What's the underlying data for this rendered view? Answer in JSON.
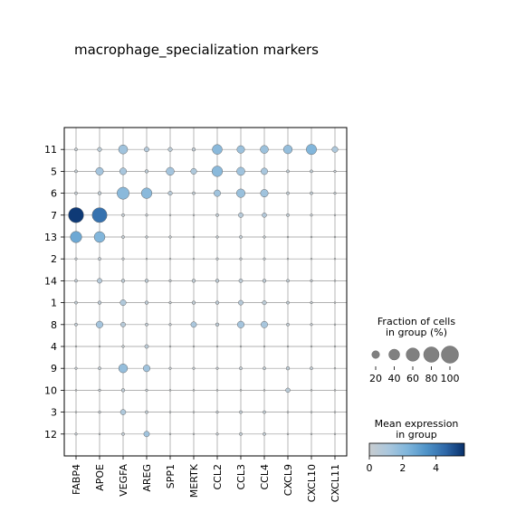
{
  "chart_data": {
    "type": "dotplot",
    "title": "macrophage_specialization markers",
    "genes": [
      "FABP4",
      "APOE",
      "VEGFA",
      "AREG",
      "SPP1",
      "MERTK",
      "CCL2",
      "CCL3",
      "CCL4",
      "CXCL9",
      "CXCL10",
      "CXCL11"
    ],
    "groups": [
      "11",
      "5",
      "6",
      "7",
      "13",
      "2",
      "14",
      "1",
      "8",
      "4",
      "9",
      "10",
      "3",
      "12"
    ],
    "grid": true,
    "fraction_pct": [
      [
        3,
        6,
        28,
        8,
        6,
        4,
        33,
        20,
        22,
        26,
        36,
        12
      ],
      [
        3,
        20,
        16,
        4,
        22,
        12,
        38,
        23,
        15,
        3,
        3,
        2
      ],
      [
        3,
        4,
        50,
        38,
        6,
        3,
        15,
        25,
        20,
        3,
        3,
        2
      ],
      [
        78,
        75,
        3,
        2,
        1,
        1,
        3,
        8,
        7,
        3,
        2,
        1
      ],
      [
        44,
        40,
        3,
        2,
        2,
        1,
        2,
        3,
        2,
        1,
        1,
        1
      ],
      [
        2,
        3,
        2,
        1,
        1,
        1,
        2,
        2,
        2,
        1,
        1,
        1
      ],
      [
        3,
        8,
        4,
        4,
        2,
        4,
        4,
        5,
        4,
        3,
        2,
        1
      ],
      [
        3,
        4,
        12,
        4,
        2,
        4,
        4,
        8,
        6,
        3,
        2,
        1
      ],
      [
        3,
        16,
        8,
        3,
        2,
        11,
        4,
        16,
        15,
        3,
        2,
        1
      ],
      [
        1,
        1,
        2,
        5,
        1,
        1,
        1,
        1,
        1,
        1,
        1,
        1
      ],
      [
        2,
        3,
        27,
        16,
        2,
        2,
        2,
        3,
        3,
        4,
        3,
        1
      ],
      [
        1,
        2,
        4,
        2,
        1,
        1,
        1,
        1,
        1,
        7,
        1,
        1
      ],
      [
        1,
        2,
        10,
        3,
        1,
        1,
        2,
        3,
        3,
        1,
        1,
        1
      ],
      [
        2,
        1,
        3,
        11,
        1,
        1,
        2,
        3,
        3,
        1,
        1,
        1
      ]
    ],
    "mean_expression": [
      [
        0.2,
        0.5,
        1.4,
        0.8,
        0.5,
        0.3,
        2.0,
        1.5,
        1.5,
        1.7,
        2.2,
        1.0
      ],
      [
        0.2,
        1.3,
        1.2,
        0.4,
        1.3,
        1.0,
        2.0,
        1.4,
        1.2,
        0.3,
        0.3,
        0.2
      ],
      [
        0.2,
        0.3,
        2.0,
        2.0,
        0.6,
        0.3,
        1.4,
        1.6,
        1.4,
        0.3,
        0.3,
        0.2
      ],
      [
        5.5,
        4.3,
        0.2,
        0.2,
        0.1,
        0.1,
        0.3,
        0.7,
        0.8,
        0.3,
        0.2,
        0.1
      ],
      [
        2.7,
        2.2,
        0.2,
        0.2,
        0.1,
        0.1,
        0.2,
        0.3,
        0.2,
        0.1,
        0.1,
        0.1
      ],
      [
        0.2,
        0.3,
        0.2,
        0.1,
        0.1,
        0.1,
        0.2,
        0.2,
        0.2,
        0.1,
        0.1,
        0.1
      ],
      [
        0.3,
        0.7,
        0.4,
        0.4,
        0.2,
        0.3,
        0.4,
        0.4,
        0.4,
        0.3,
        0.2,
        0.1
      ],
      [
        0.3,
        0.4,
        0.9,
        0.4,
        0.2,
        0.3,
        0.4,
        0.7,
        0.5,
        0.3,
        0.2,
        0.1
      ],
      [
        0.3,
        1.3,
        0.7,
        0.3,
        0.2,
        1.1,
        0.4,
        1.3,
        1.2,
        0.3,
        0.2,
        0.1
      ],
      [
        0.1,
        0.1,
        0.2,
        0.5,
        0.1,
        0.1,
        0.1,
        0.1,
        0.1,
        0.1,
        0.1,
        0.1
      ],
      [
        0.2,
        0.3,
        1.7,
        1.4,
        0.2,
        0.2,
        0.2,
        0.3,
        0.3,
        0.4,
        0.3,
        0.1
      ],
      [
        0.1,
        0.2,
        0.4,
        0.2,
        0.1,
        0.1,
        0.1,
        0.1,
        0.1,
        0.6,
        0.1,
        0.1
      ],
      [
        0.1,
        0.2,
        1.0,
        0.3,
        0.1,
        0.1,
        0.2,
        0.3,
        0.3,
        0.1,
        0.1,
        0.1
      ],
      [
        0.2,
        0.1,
        0.3,
        1.4,
        0.1,
        0.1,
        0.2,
        0.3,
        0.3,
        0.1,
        0.1,
        0.1
      ]
    ],
    "size_legend": {
      "title_line1": "Fraction of cells",
      "title_line2": "in group (%)",
      "values": [
        20,
        40,
        60,
        80,
        100
      ],
      "labels": [
        "20",
        "40",
        "60",
        "80",
        "100"
      ]
    },
    "color_legend": {
      "title_line1": "Mean expression",
      "title_line2": "in group",
      "range": [
        0,
        5.7
      ],
      "ticks": [
        0,
        2,
        4
      ],
      "tick_labels": [
        "0",
        "2",
        "4"
      ],
      "colormap": [
        "#c8cccf",
        "#aac7dd",
        "#7fb5db",
        "#4f93c8",
        "#2f68a8",
        "#08306b"
      ]
    },
    "colors": {
      "grid": "#999999",
      "dot_edge": "#666666",
      "legend_dot": "#808080"
    }
  }
}
